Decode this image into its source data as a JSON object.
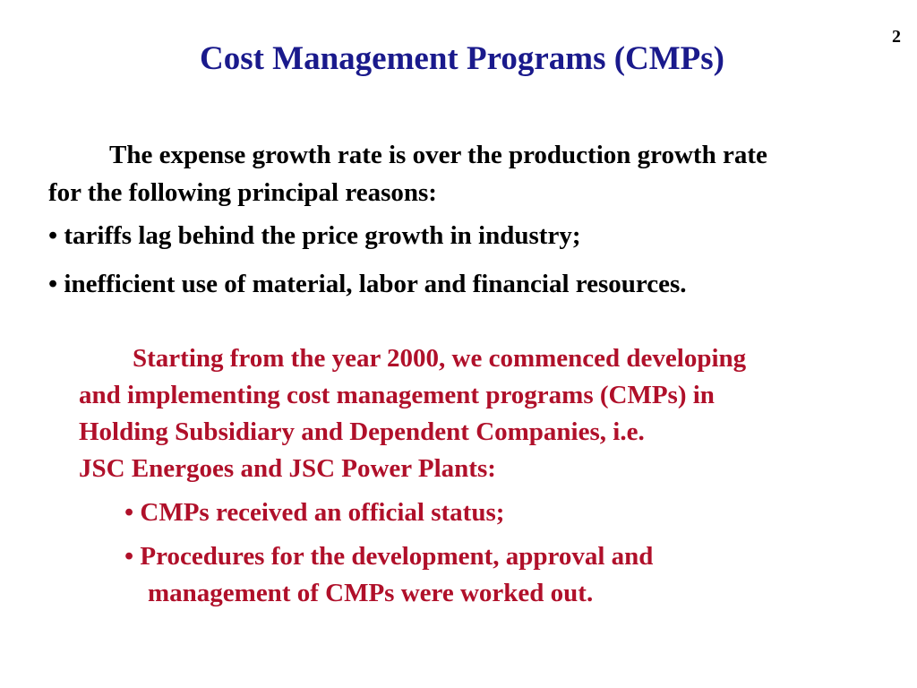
{
  "slide": {
    "page_number": "2",
    "title": "Cost Management Programs (CMPs)",
    "intro": {
      "line1": "The expense growth rate is over the production growth rate",
      "line2": "for the following principal reasons:"
    },
    "reasons": [
      "• tariffs lag behind the price growth in industry;",
      "• inefficient use of material, labor and financial resources."
    ],
    "red_paragraph": {
      "line1": "Starting from the year 2000, we commenced developing",
      "line2": "and implementing cost management programs (CMPs) in",
      "line3": "Holding Subsidiary and Dependent Companies, i.e.",
      "line4": "JSC Energoes and JSC Power Plants:"
    },
    "achievements": {
      "item1": "• CMPs received an official status;",
      "item2_line1": "• Procedures for the development, approval and",
      "item2_line2": "management  of CMPs were worked out."
    },
    "colors": {
      "title": "#1a1a8c",
      "body": "#000000",
      "highlight": "#b0102a"
    }
  }
}
